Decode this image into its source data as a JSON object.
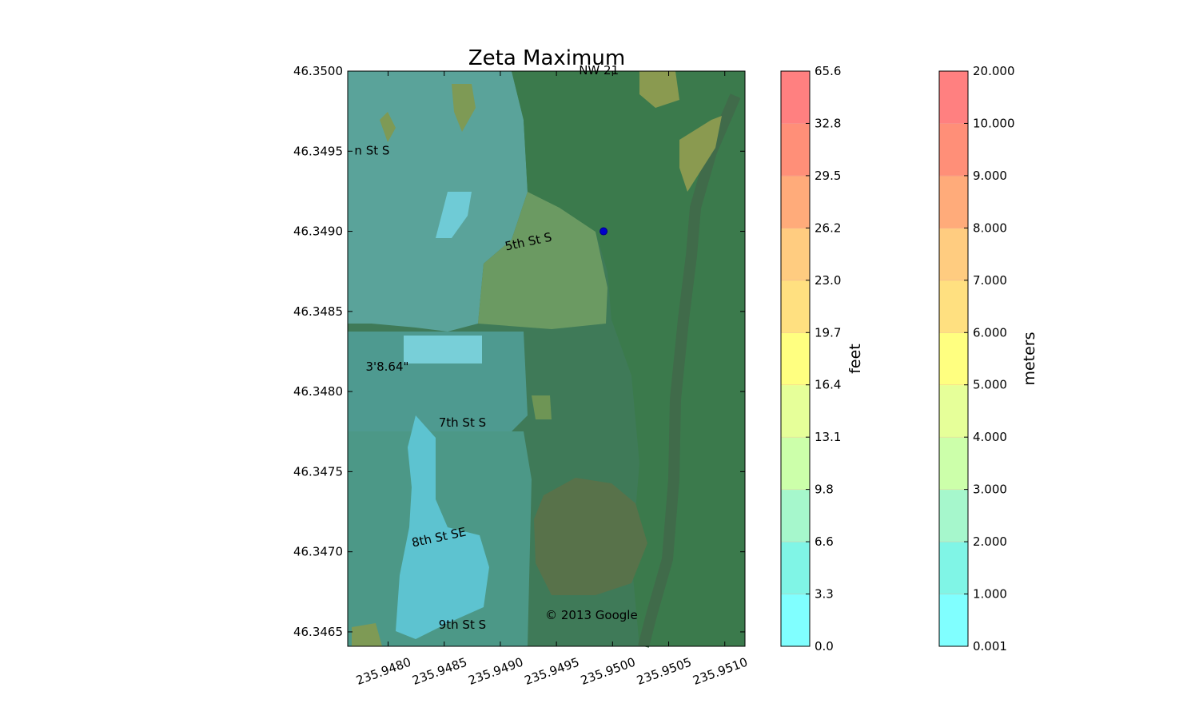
{
  "chart_data": {
    "type": "heatmap",
    "title": "Zeta Maximum",
    "xlabel": "",
    "ylabel": "",
    "xlim": [
      235.94764,
      235.95118
    ],
    "ylim": [
      46.34641,
      46.35
    ],
    "x_ticks": [
      "235.9480",
      "235.9485",
      "235.9490",
      "235.9495",
      "235.9500",
      "235.9505",
      "235.9510"
    ],
    "x_tick_values": [
      235.948,
      235.9485,
      235.949,
      235.9495,
      235.95,
      235.9505,
      235.951
    ],
    "y_ticks": [
      "46.3500",
      "46.3495",
      "46.3490",
      "46.3485",
      "46.3480",
      "46.3475",
      "46.3470",
      "46.3465"
    ],
    "y_tick_values": [
      46.35,
      46.3495,
      46.349,
      46.3485,
      46.348,
      46.3475,
      46.347,
      46.3465
    ],
    "annotations": [
      {
        "text": "© 2013 Google",
        "x": 235.9494,
        "y": 46.34658
      },
      {
        "text": "5th St S",
        "x": 235.94905,
        "y": 46.34888
      },
      {
        "text": "7th St S",
        "x": 235.94845,
        "y": 46.34778
      },
      {
        "text": "8th St SE",
        "x": 235.94822,
        "y": 46.34703
      },
      {
        "text": "9th St S",
        "x": 235.94845,
        "y": 46.34652
      },
      {
        "text": "n St S",
        "x": 235.9477,
        "y": 46.34948
      },
      {
        "text": "3'8.64\"",
        "x": 235.9478,
        "y": 46.34813
      },
      {
        "text": "NW 21",
        "x": 235.9497,
        "y": 46.34998
      }
    ],
    "marker": {
      "x": 235.94992,
      "y": 46.349,
      "color": "#0000cc"
    },
    "colorbars": [
      {
        "label": "feet",
        "ticks": [
          "0.0",
          "3.3",
          "6.6",
          "9.8",
          "13.1",
          "16.4",
          "19.7",
          "23.0",
          "26.2",
          "29.5",
          "32.8",
          "65.6"
        ]
      },
      {
        "label": "meters",
        "ticks": [
          "0.001",
          "1.000",
          "2.000",
          "3.000",
          "4.000",
          "5.000",
          "6.000",
          "7.000",
          "8.000",
          "9.000",
          "10.000",
          "20.000"
        ]
      }
    ],
    "level_colors": [
      "#80ffff",
      "#80f5e6",
      "#a6f7cc",
      "#ccffaa",
      "#e6ff99",
      "#ffff80",
      "#ffe080",
      "#ffcc80",
      "#ffab7a",
      "#ff8f78",
      "#ff8080"
    ]
  }
}
